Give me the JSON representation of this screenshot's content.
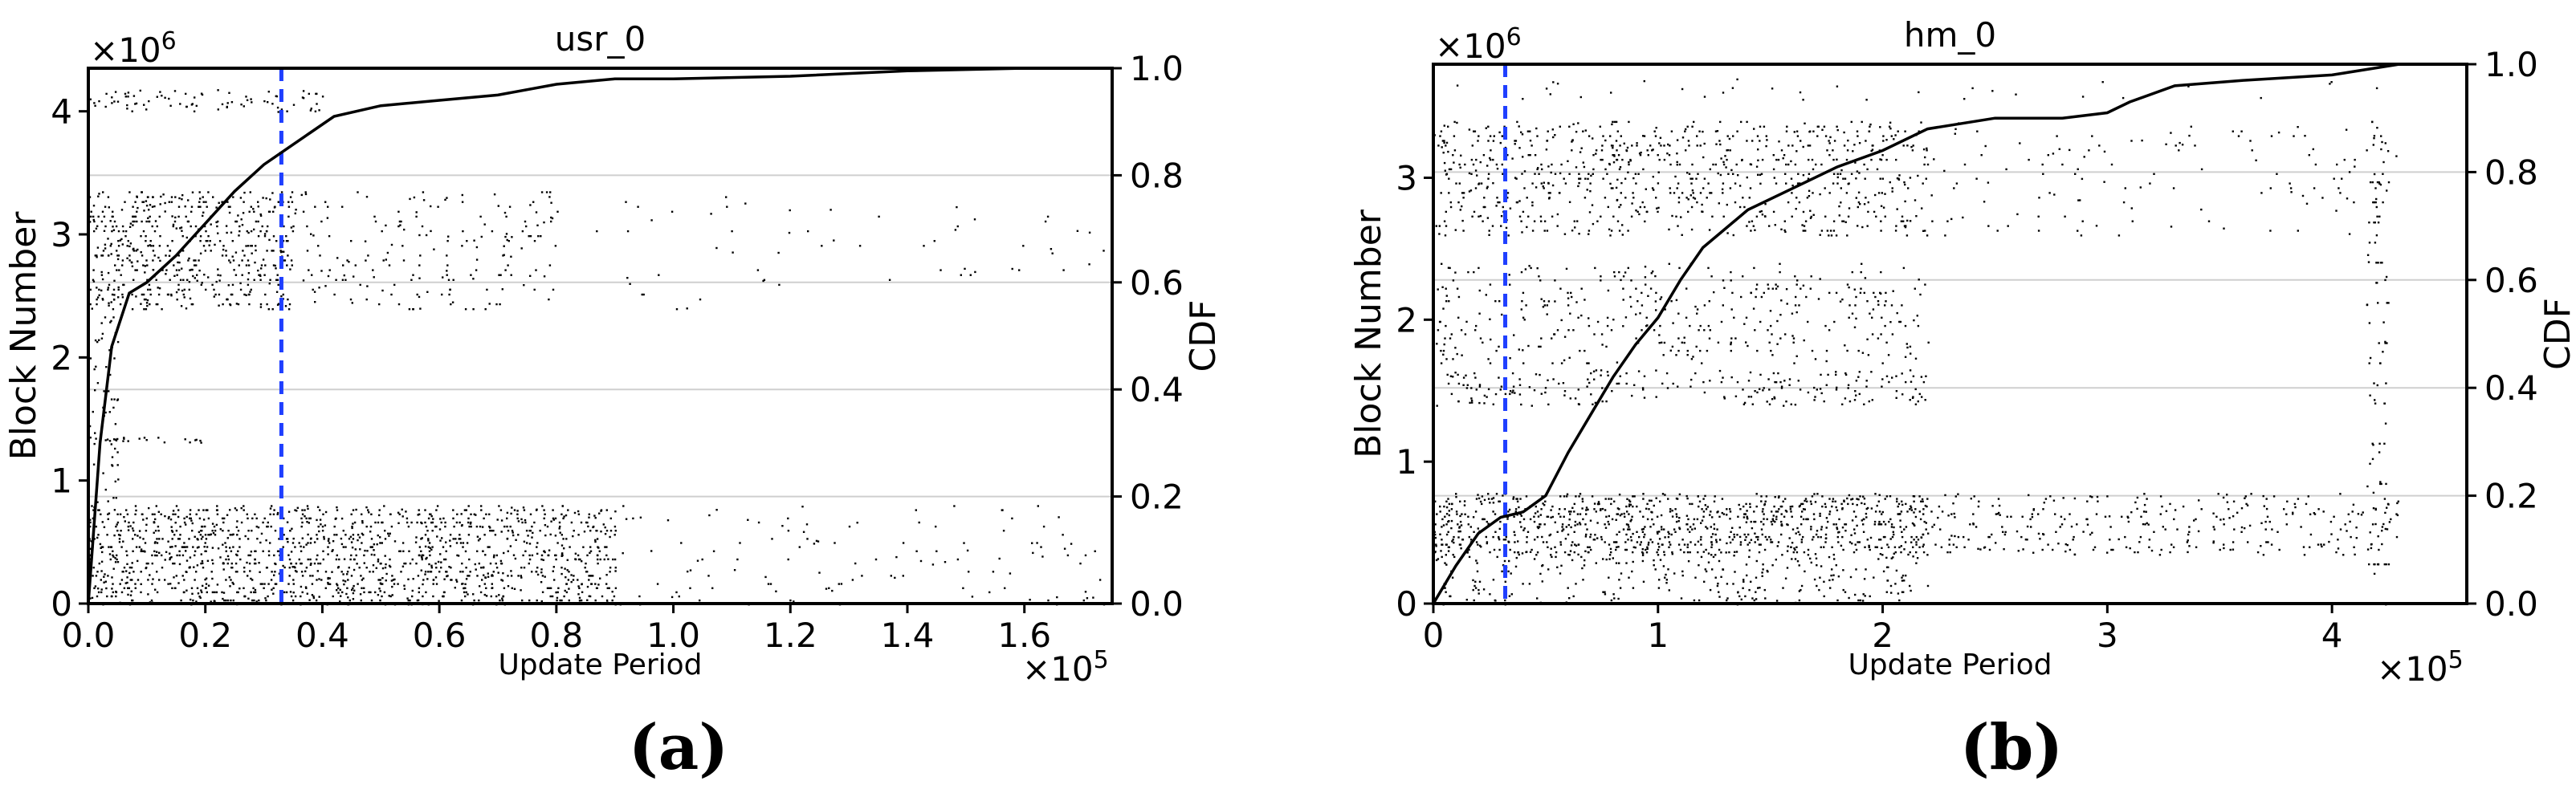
{
  "chart_data": [
    {
      "panel": "(a)",
      "type": "scatter",
      "title": "usr_0",
      "xlabel": "Update Period",
      "ylabel": "Block Number",
      "ylabel_right": "CDF",
      "x_multiplier": "×10^5",
      "y_multiplier": "×10^6",
      "xlim": [
        0,
        1.75
      ],
      "ylim": [
        0,
        4.35
      ],
      "ylim_right": [
        0,
        1.0
      ],
      "x_ticks": [
        "0.0",
        "0.2",
        "0.4",
        "0.6",
        "0.8",
        "1.0",
        "1.2",
        "1.4",
        "1.6"
      ],
      "y_ticks": [
        "0",
        "1",
        "2",
        "3",
        "4"
      ],
      "y_right_ticks": [
        "0.0",
        "0.2",
        "0.4",
        "0.6",
        "0.8",
        "1.0"
      ],
      "grid_right": true,
      "vline_x": 0.33,
      "vline_color": "#1f3fff",
      "scatter_bands": [
        {
          "y": [
            0.0,
            0.8
          ],
          "x": [
            0.0,
            0.9
          ],
          "density": 0.9
        },
        {
          "y": [
            0.0,
            0.8
          ],
          "x": [
            0.9,
            1.75
          ],
          "density": 0.08
        },
        {
          "y": [
            2.4,
            3.35
          ],
          "x": [
            0.0,
            0.35
          ],
          "density": 0.75
        },
        {
          "y": [
            2.4,
            3.35
          ],
          "x": [
            0.35,
            0.8
          ],
          "density": 0.2
        },
        {
          "y": [
            2.4,
            3.35
          ],
          "x": [
            0.8,
            1.75
          ],
          "density": 0.03
        },
        {
          "y": [
            4.0,
            4.18
          ],
          "x": [
            0.0,
            0.4
          ],
          "density": 0.5
        },
        {
          "y": [
            1.3,
            1.36
          ],
          "x": [
            0.0,
            0.2
          ],
          "density": 0.9
        },
        {
          "y": [
            0.8,
            2.4
          ],
          "x": [
            0.0,
            0.05
          ],
          "density": 0.3
        }
      ],
      "cdf": {
        "x": [
          0.0,
          0.02,
          0.04,
          0.07,
          0.1,
          0.15,
          0.2,
          0.25,
          0.3,
          0.34,
          0.38,
          0.42,
          0.5,
          0.6,
          0.7,
          0.8,
          0.9,
          1.0,
          1.2,
          1.4,
          1.6,
          1.75
        ],
        "y": [
          0.0,
          0.3,
          0.48,
          0.58,
          0.6,
          0.65,
          0.71,
          0.77,
          0.82,
          0.85,
          0.88,
          0.91,
          0.93,
          0.94,
          0.95,
          0.97,
          0.98,
          0.98,
          0.985,
          0.995,
          1.0,
          1.0
        ]
      }
    },
    {
      "panel": "(b)",
      "type": "scatter",
      "title": "hm_0",
      "xlabel": "Update Period",
      "ylabel": "Block Number",
      "ylabel_right": "CDF",
      "x_multiplier": "×10^5",
      "y_multiplier": "×10^6",
      "xlim": [
        0,
        4.6
      ],
      "ylim": [
        0,
        3.8
      ],
      "ylim_right": [
        0,
        1.0
      ],
      "x_ticks": [
        "0",
        "1",
        "2",
        "3",
        "4"
      ],
      "y_ticks": [
        "0",
        "1",
        "2",
        "3"
      ],
      "y_right_ticks": [
        "0.0",
        "0.2",
        "0.4",
        "0.6",
        "0.8",
        "1.0"
      ],
      "grid_right": true,
      "vline_x": 0.32,
      "vline_color": "#1f3fff",
      "scatter_bands": [
        {
          "y": [
            0.35,
            0.78
          ],
          "x": [
            0.0,
            2.2
          ],
          "density": 1.0
        },
        {
          "y": [
            0.35,
            0.78
          ],
          "x": [
            2.2,
            4.3
          ],
          "density": 0.35
        },
        {
          "y": [
            0.0,
            0.35
          ],
          "x": [
            0.0,
            2.2
          ],
          "density": 0.35
        },
        {
          "y": [
            2.6,
            3.4
          ],
          "x": [
            0.0,
            2.2
          ],
          "density": 0.45
        },
        {
          "y": [
            2.6,
            3.4
          ],
          "x": [
            2.2,
            4.3
          ],
          "density": 0.08
        },
        {
          "y": [
            1.4,
            1.65
          ],
          "x": [
            0.0,
            2.2
          ],
          "density": 0.4
        },
        {
          "y": [
            1.7,
            2.4
          ],
          "x": [
            0.0,
            2.2
          ],
          "density": 0.25
        },
        {
          "y": [
            3.55,
            3.7
          ],
          "x": [
            0.0,
            4.3
          ],
          "density": 0.05
        },
        {
          "y": [
            0.0,
            3.4
          ],
          "x": [
            4.15,
            4.25
          ],
          "density": 0.3
        }
      ],
      "cdf": {
        "x": [
          0.0,
          0.1,
          0.2,
          0.3,
          0.4,
          0.5,
          0.6,
          0.7,
          0.8,
          0.9,
          1.0,
          1.1,
          1.2,
          1.4,
          1.6,
          1.8,
          2.0,
          2.2,
          2.5,
          2.8,
          3.0,
          3.1,
          3.3,
          3.6,
          4.0,
          4.3,
          4.6
        ],
        "y": [
          0.0,
          0.07,
          0.13,
          0.16,
          0.17,
          0.2,
          0.28,
          0.35,
          0.42,
          0.48,
          0.53,
          0.6,
          0.66,
          0.73,
          0.77,
          0.81,
          0.84,
          0.88,
          0.9,
          0.9,
          0.91,
          0.93,
          0.96,
          0.97,
          0.98,
          1.0,
          1.0
        ]
      }
    }
  ]
}
